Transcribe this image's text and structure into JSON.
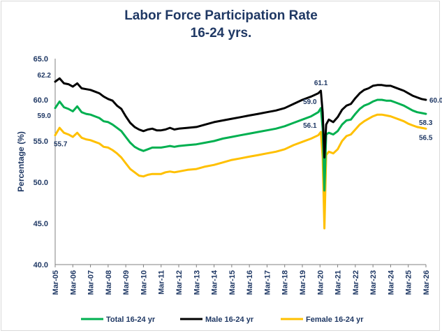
{
  "chart_data": {
    "type": "line",
    "title": "Labor Force Participation Rate",
    "subtitle": "16-24 yrs.",
    "ylabel": "Percentage (%)",
    "xlabel": "",
    "ylim": [
      40,
      65
    ],
    "yticks": [
      "40.0",
      "45.0",
      "50.0",
      "55.0",
      "60.0",
      "65.0"
    ],
    "xticks": [
      "Mar-05",
      "Mar-06",
      "Mar-07",
      "Mar-08",
      "Mar-09",
      "Mar-10",
      "Mar-11",
      "Mar-12",
      "Mar-13",
      "Mar-14",
      "Mar-15",
      "Mar-16",
      "Mar-17",
      "Mar-18",
      "Mar-19",
      "Mar-20",
      "Mar-21",
      "Mar-22",
      "Mar-23",
      "Mar-24",
      "Mar-25",
      "Mar-26"
    ],
    "legend_position": "bottom",
    "series": [
      {
        "name": "Total 16-24 yr",
        "color": "#00b050",
        "points": [
          [
            2005.0,
            59.0
          ],
          [
            2005.25,
            59.8
          ],
          [
            2005.5,
            59.1
          ],
          [
            2005.75,
            58.9
          ],
          [
            2006.0,
            58.6
          ],
          [
            2006.25,
            59.2
          ],
          [
            2006.5,
            58.5
          ],
          [
            2006.75,
            58.3
          ],
          [
            2007.0,
            58.2
          ],
          [
            2007.25,
            58.0
          ],
          [
            2007.5,
            57.8
          ],
          [
            2007.75,
            57.4
          ],
          [
            2008.0,
            57.3
          ],
          [
            2008.25,
            57.0
          ],
          [
            2008.5,
            56.6
          ],
          [
            2008.75,
            56.2
          ],
          [
            2009.0,
            55.5
          ],
          [
            2009.25,
            54.8
          ],
          [
            2009.5,
            54.3
          ],
          [
            2009.75,
            54.0
          ],
          [
            2010.0,
            53.8
          ],
          [
            2010.25,
            54.0
          ],
          [
            2010.5,
            54.2
          ],
          [
            2010.75,
            54.2
          ],
          [
            2011.0,
            54.2
          ],
          [
            2011.25,
            54.3
          ],
          [
            2011.5,
            54.4
          ],
          [
            2011.75,
            54.3
          ],
          [
            2012.0,
            54.4
          ],
          [
            2012.5,
            54.5
          ],
          [
            2013.0,
            54.6
          ],
          [
            2013.5,
            54.8
          ],
          [
            2014.0,
            55.0
          ],
          [
            2014.5,
            55.3
          ],
          [
            2015.0,
            55.5
          ],
          [
            2015.5,
            55.7
          ],
          [
            2016.0,
            55.9
          ],
          [
            2016.5,
            56.1
          ],
          [
            2017.0,
            56.3
          ],
          [
            2017.5,
            56.5
          ],
          [
            2018.0,
            56.8
          ],
          [
            2018.5,
            57.2
          ],
          [
            2019.0,
            57.6
          ],
          [
            2019.5,
            58.0
          ],
          [
            2019.9,
            58.5
          ],
          [
            2020.05,
            59.0
          ],
          [
            2020.15,
            56.5
          ],
          [
            2020.25,
            49.0
          ],
          [
            2020.35,
            55.8
          ],
          [
            2020.5,
            56.0
          ],
          [
            2020.75,
            55.8
          ],
          [
            2021.0,
            56.2
          ],
          [
            2021.25,
            57.0
          ],
          [
            2021.5,
            57.5
          ],
          [
            2021.75,
            57.6
          ],
          [
            2022.0,
            58.3
          ],
          [
            2022.25,
            58.9
          ],
          [
            2022.5,
            59.3
          ],
          [
            2022.75,
            59.5
          ],
          [
            2023.0,
            59.8
          ],
          [
            2023.25,
            60.0
          ],
          [
            2023.5,
            60.0
          ],
          [
            2023.75,
            59.9
          ],
          [
            2024.0,
            59.9
          ],
          [
            2024.25,
            59.7
          ],
          [
            2024.5,
            59.5
          ],
          [
            2024.75,
            59.3
          ],
          [
            2025.0,
            59.0
          ],
          [
            2025.25,
            58.7
          ],
          [
            2025.5,
            58.5
          ],
          [
            2025.75,
            58.4
          ],
          [
            2026.0,
            58.3
          ]
        ]
      },
      {
        "name": "Male 16-24 yr",
        "color": "#000000",
        "points": [
          [
            2005.0,
            62.2
          ],
          [
            2005.25,
            62.6
          ],
          [
            2005.5,
            62.0
          ],
          [
            2005.75,
            61.9
          ],
          [
            2006.0,
            61.6
          ],
          [
            2006.25,
            62.0
          ],
          [
            2006.5,
            61.4
          ],
          [
            2006.75,
            61.3
          ],
          [
            2007.0,
            61.2
          ],
          [
            2007.25,
            61.0
          ],
          [
            2007.5,
            60.8
          ],
          [
            2007.75,
            60.4
          ],
          [
            2008.0,
            60.1
          ],
          [
            2008.25,
            59.9
          ],
          [
            2008.5,
            59.3
          ],
          [
            2008.75,
            58.9
          ],
          [
            2009.0,
            58.0
          ],
          [
            2009.25,
            57.2
          ],
          [
            2009.5,
            56.7
          ],
          [
            2009.75,
            56.4
          ],
          [
            2010.0,
            56.2
          ],
          [
            2010.25,
            56.4
          ],
          [
            2010.5,
            56.5
          ],
          [
            2010.75,
            56.3
          ],
          [
            2011.0,
            56.3
          ],
          [
            2011.25,
            56.4
          ],
          [
            2011.5,
            56.6
          ],
          [
            2011.75,
            56.4
          ],
          [
            2012.0,
            56.5
          ],
          [
            2012.5,
            56.6
          ],
          [
            2013.0,
            56.7
          ],
          [
            2013.5,
            57.0
          ],
          [
            2014.0,
            57.3
          ],
          [
            2014.5,
            57.5
          ],
          [
            2015.0,
            57.7
          ],
          [
            2015.5,
            57.9
          ],
          [
            2016.0,
            58.1
          ],
          [
            2016.5,
            58.3
          ],
          [
            2017.0,
            58.5
          ],
          [
            2017.5,
            58.7
          ],
          [
            2018.0,
            59.0
          ],
          [
            2018.5,
            59.5
          ],
          [
            2019.0,
            60.0
          ],
          [
            2019.5,
            60.4
          ],
          [
            2019.9,
            60.8
          ],
          [
            2020.05,
            61.1
          ],
          [
            2020.15,
            58.5
          ],
          [
            2020.25,
            53.0
          ],
          [
            2020.35,
            57.0
          ],
          [
            2020.5,
            57.6
          ],
          [
            2020.75,
            57.3
          ],
          [
            2021.0,
            57.9
          ],
          [
            2021.25,
            58.8
          ],
          [
            2021.5,
            59.3
          ],
          [
            2021.75,
            59.5
          ],
          [
            2022.0,
            60.2
          ],
          [
            2022.25,
            60.8
          ],
          [
            2022.5,
            61.2
          ],
          [
            2022.75,
            61.4
          ],
          [
            2023.0,
            61.7
          ],
          [
            2023.25,
            61.8
          ],
          [
            2023.5,
            61.8
          ],
          [
            2023.75,
            61.7
          ],
          [
            2024.0,
            61.7
          ],
          [
            2024.25,
            61.5
          ],
          [
            2024.5,
            61.3
          ],
          [
            2024.75,
            61.1
          ],
          [
            2025.0,
            60.8
          ],
          [
            2025.25,
            60.5
          ],
          [
            2025.5,
            60.3
          ],
          [
            2025.75,
            60.1
          ],
          [
            2026.0,
            60.0
          ]
        ]
      },
      {
        "name": "Female 16-24 yr",
        "color": "#ffc000",
        "points": [
          [
            2005.0,
            55.7
          ],
          [
            2005.25,
            56.6
          ],
          [
            2005.5,
            56.0
          ],
          [
            2005.75,
            55.8
          ],
          [
            2006.0,
            55.5
          ],
          [
            2006.25,
            56.0
          ],
          [
            2006.5,
            55.4
          ],
          [
            2006.75,
            55.2
          ],
          [
            2007.0,
            55.1
          ],
          [
            2007.25,
            54.9
          ],
          [
            2007.5,
            54.7
          ],
          [
            2007.75,
            54.3
          ],
          [
            2008.0,
            54.2
          ],
          [
            2008.25,
            53.9
          ],
          [
            2008.5,
            53.5
          ],
          [
            2008.75,
            53.0
          ],
          [
            2009.0,
            52.3
          ],
          [
            2009.25,
            51.6
          ],
          [
            2009.5,
            51.2
          ],
          [
            2009.75,
            50.8
          ],
          [
            2010.0,
            50.7
          ],
          [
            2010.25,
            50.9
          ],
          [
            2010.5,
            51.0
          ],
          [
            2010.75,
            51.0
          ],
          [
            2011.0,
            51.0
          ],
          [
            2011.25,
            51.2
          ],
          [
            2011.5,
            51.3
          ],
          [
            2011.75,
            51.2
          ],
          [
            2012.0,
            51.3
          ],
          [
            2012.5,
            51.5
          ],
          [
            2013.0,
            51.6
          ],
          [
            2013.5,
            51.9
          ],
          [
            2014.0,
            52.1
          ],
          [
            2014.5,
            52.4
          ],
          [
            2015.0,
            52.7
          ],
          [
            2015.5,
            52.9
          ],
          [
            2016.0,
            53.1
          ],
          [
            2016.5,
            53.3
          ],
          [
            2017.0,
            53.5
          ],
          [
            2017.5,
            53.7
          ],
          [
            2018.0,
            54.0
          ],
          [
            2018.5,
            54.5
          ],
          [
            2019.0,
            54.9
          ],
          [
            2019.5,
            55.3
          ],
          [
            2019.9,
            55.7
          ],
          [
            2020.05,
            56.1
          ],
          [
            2020.15,
            53.0
          ],
          [
            2020.25,
            44.4
          ],
          [
            2020.35,
            53.3
          ],
          [
            2020.5,
            53.7
          ],
          [
            2020.75,
            53.5
          ],
          [
            2021.0,
            54.0
          ],
          [
            2021.25,
            55.0
          ],
          [
            2021.5,
            55.6
          ],
          [
            2021.75,
            55.8
          ],
          [
            2022.0,
            56.4
          ],
          [
            2022.25,
            57.0
          ],
          [
            2022.5,
            57.4
          ],
          [
            2022.75,
            57.7
          ],
          [
            2023.0,
            58.0
          ],
          [
            2023.25,
            58.2
          ],
          [
            2023.5,
            58.2
          ],
          [
            2023.75,
            58.1
          ],
          [
            2024.0,
            58.0
          ],
          [
            2024.25,
            57.8
          ],
          [
            2024.5,
            57.6
          ],
          [
            2024.75,
            57.4
          ],
          [
            2025.0,
            57.1
          ],
          [
            2025.25,
            56.9
          ],
          [
            2025.5,
            56.7
          ],
          [
            2025.75,
            56.6
          ],
          [
            2026.0,
            56.5
          ]
        ]
      }
    ],
    "annotations": [
      {
        "text": "62.2",
        "series": 1,
        "x": 2005.0,
        "y": 62.2,
        "pos": "above-left"
      },
      {
        "text": "59.0",
        "series": 0,
        "x": 2005.0,
        "y": 59.0,
        "pos": "below-left"
      },
      {
        "text": "55.7",
        "series": 2,
        "x": 2005.0,
        "y": 55.7,
        "pos": "below"
      },
      {
        "text": "61.1",
        "series": 1,
        "x": 2020.05,
        "y": 61.1,
        "pos": "above"
      },
      {
        "text": "59.0",
        "series": 0,
        "x": 2020.05,
        "y": 59.0,
        "pos": "above-left"
      },
      {
        "text": "56.1",
        "series": 2,
        "x": 2020.05,
        "y": 56.1,
        "pos": "above-left"
      },
      {
        "text": "60.0",
        "series": 1,
        "x": 2026.0,
        "y": 60.0,
        "pos": "right"
      },
      {
        "text": "58.3",
        "series": 0,
        "x": 2026.0,
        "y": 58.3,
        "pos": "below"
      },
      {
        "text": "56.5",
        "series": 2,
        "x": 2026.0,
        "y": 56.5,
        "pos": "below"
      }
    ]
  }
}
